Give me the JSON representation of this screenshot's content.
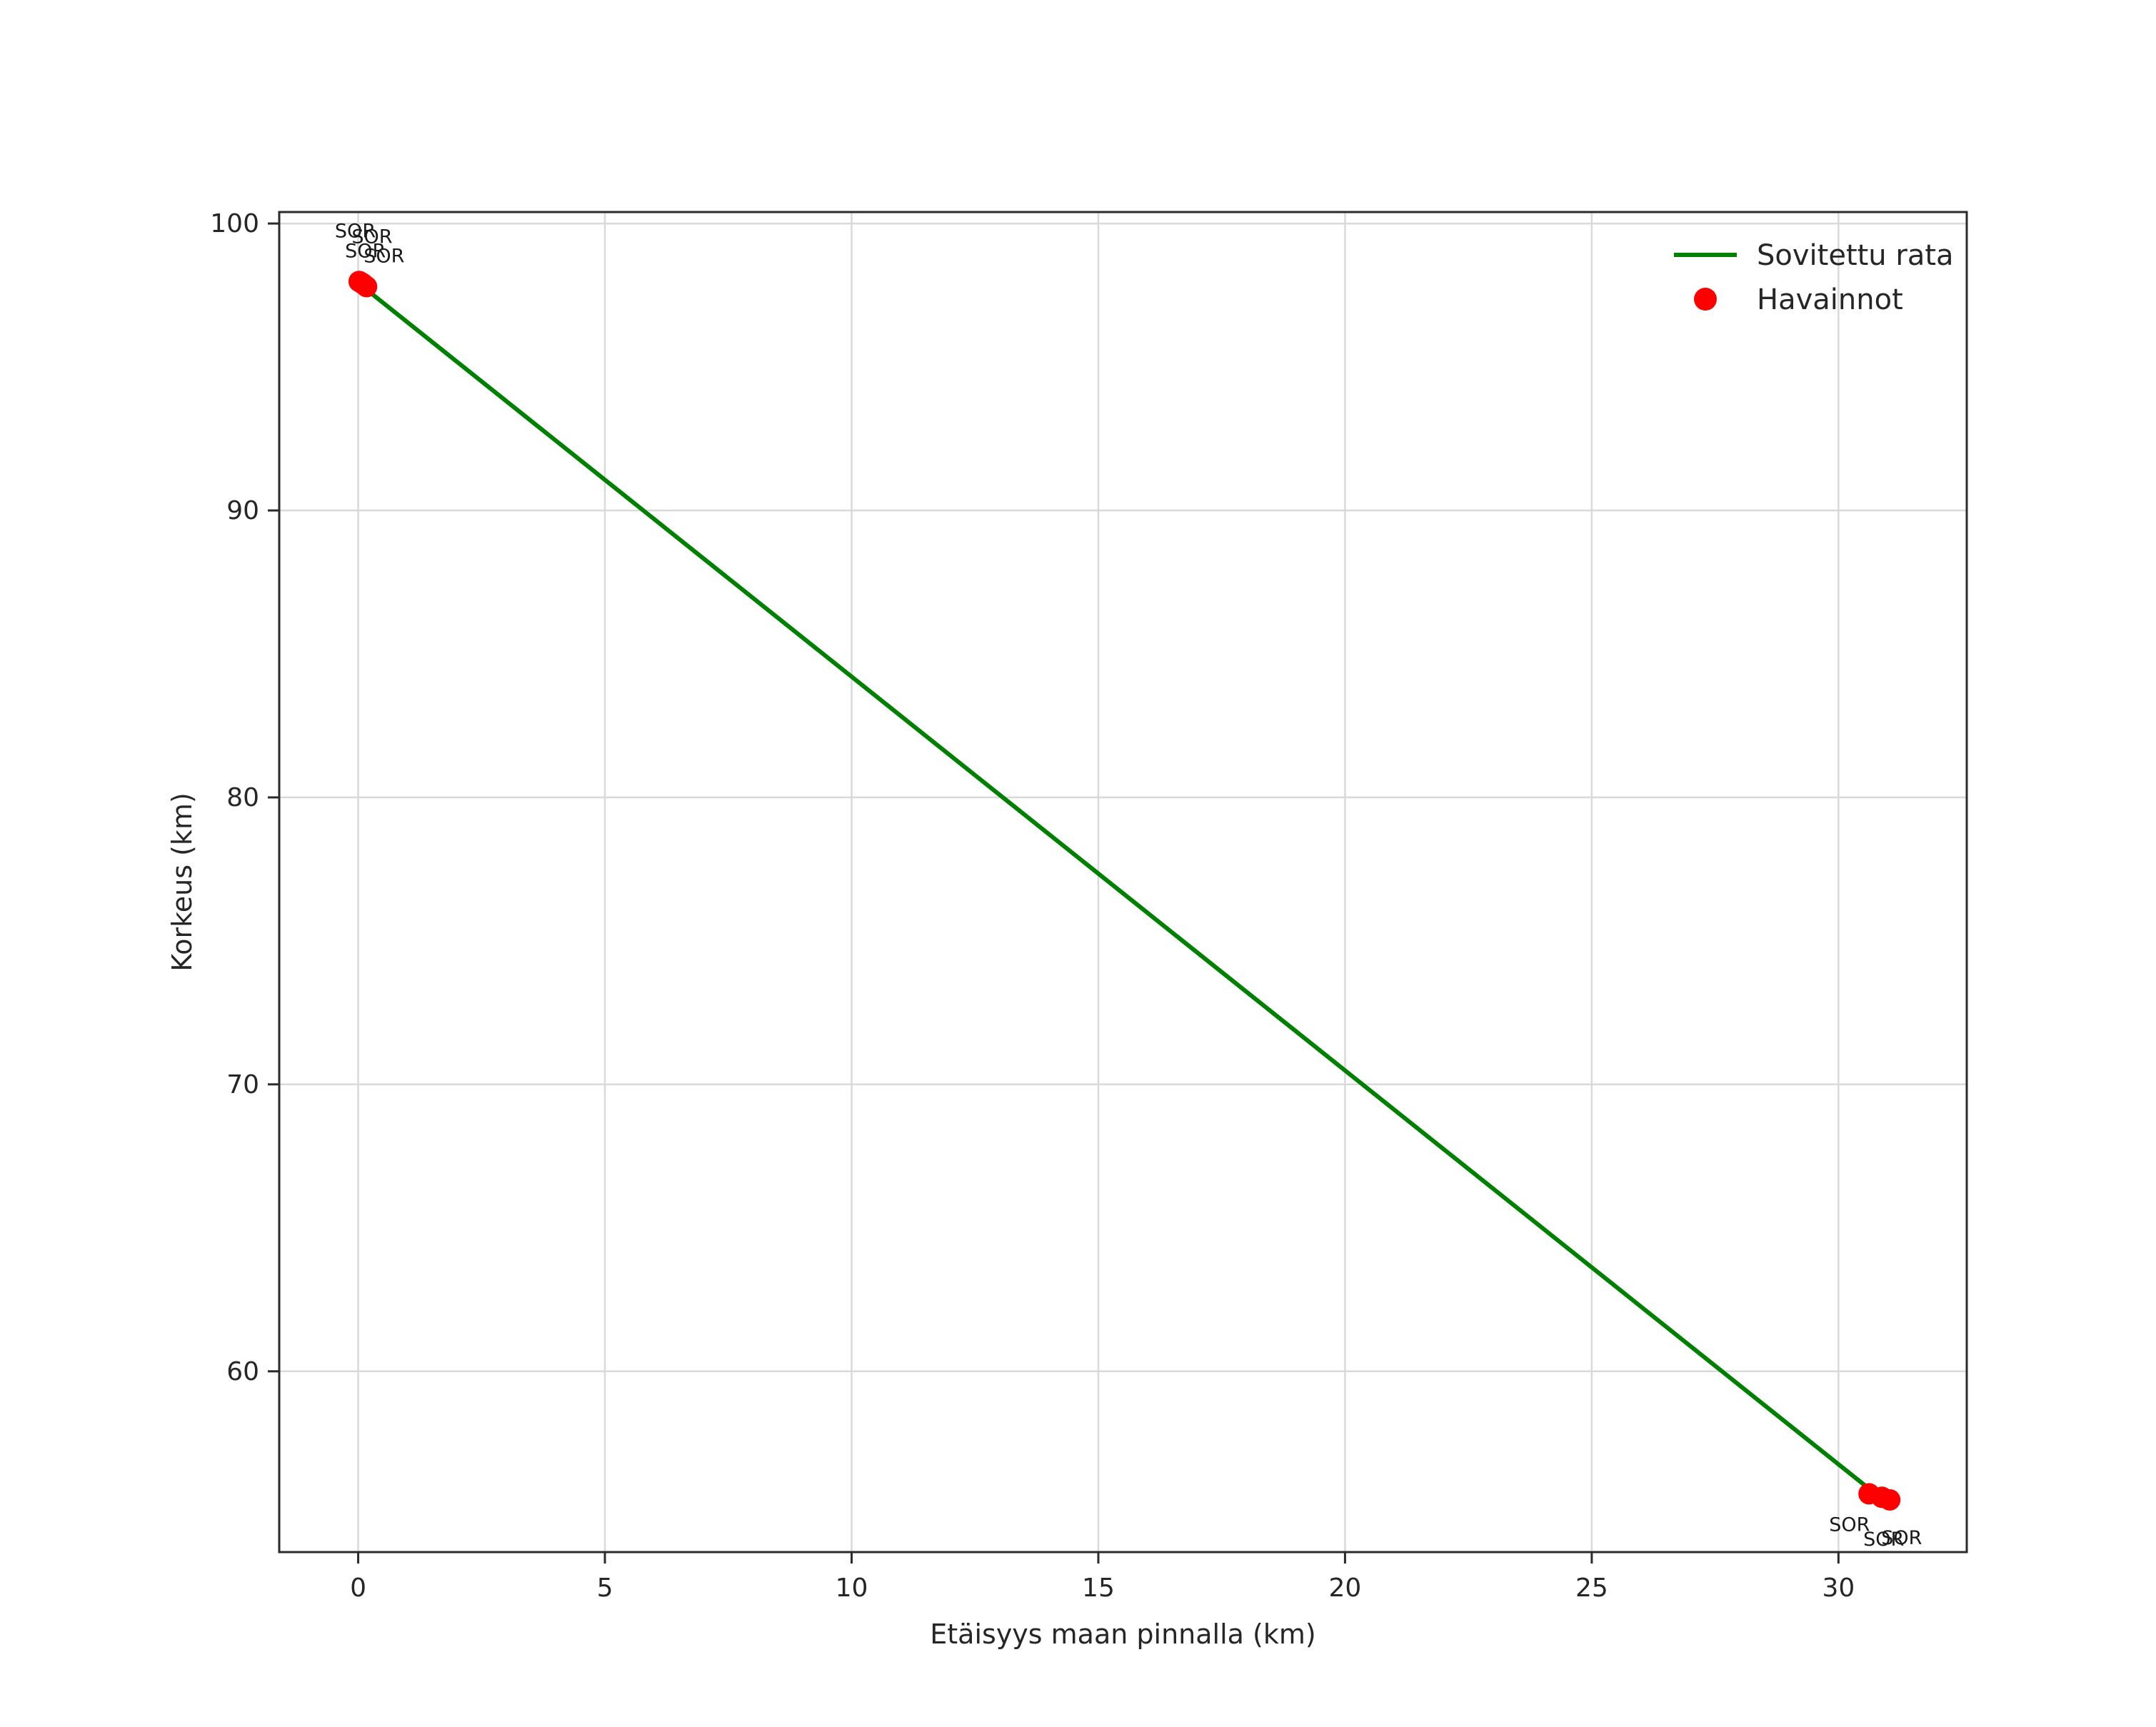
{
  "chart_data": {
    "type": "scatter",
    "title": "",
    "xlabel": "Etäisyys maan pinnalla (km)",
    "ylabel": "Korkeus (km)",
    "xlim": [
      -1.6,
      32.6
    ],
    "ylim": [
      53.7,
      100.4
    ],
    "xticks": [
      0,
      5,
      10,
      15,
      20,
      25,
      30
    ],
    "yticks": [
      60,
      70,
      80,
      90,
      100
    ],
    "grid": true,
    "grid_color": "#d9d9d9",
    "spine_color": "#2b2b2b",
    "tick_label_color": "#262626",
    "annotation_color": "#1a1a1a",
    "legend": {
      "position": "upper right",
      "frame": false,
      "entries": [
        {
          "label": "Sovitettu rata",
          "type": "line",
          "color": "#008000"
        },
        {
          "label": "Havainnot",
          "type": "marker",
          "color": "#ff0000"
        }
      ]
    },
    "series": [
      {
        "name": "Sovitettu rata",
        "type": "line",
        "color": "#008000",
        "width": 6,
        "points": [
          [
            0.0,
            97.93
          ],
          [
            30.7,
            55.8
          ]
        ]
      },
      {
        "name": "Havainnot",
        "type": "scatter",
        "color": "#ff0000",
        "radius": 15,
        "points": [
          {
            "x": 0.02,
            "y": 97.98,
            "label": "SOR",
            "dx": -34,
            "dy": -62
          },
          {
            "x": 0.07,
            "y": 97.93,
            "label": "SOR",
            "dx": -14,
            "dy": -56
          },
          {
            "x": 0.11,
            "y": 97.88,
            "label": "SOR",
            "dx": -26,
            "dy": -38
          },
          {
            "x": 0.17,
            "y": 97.8,
            "label": "SOR",
            "dx": -4,
            "dy": -34
          },
          {
            "x": 30.62,
            "y": 55.73,
            "label": "SOR",
            "dx": -56,
            "dy": 52
          },
          {
            "x": 30.88,
            "y": 55.61,
            "label": "SOR",
            "dx": -26,
            "dy": 68
          },
          {
            "x": 31.04,
            "y": 55.52,
            "label": "SOR",
            "dx": -12,
            "dy": 62
          }
        ]
      }
    ]
  }
}
